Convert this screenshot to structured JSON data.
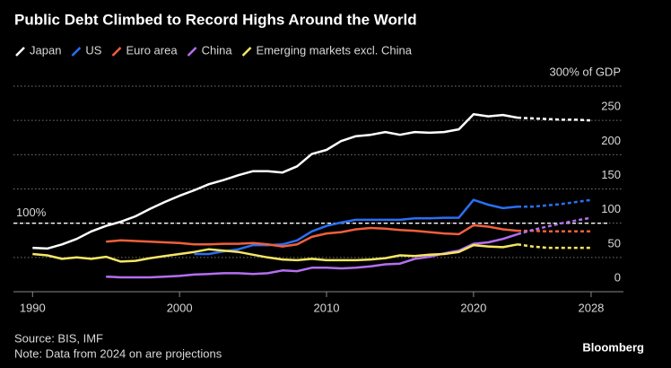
{
  "chart_data": {
    "type": "line",
    "title": "Public Debt Climbed to Record Highs Around the World",
    "x": [
      1990,
      1991,
      1992,
      1993,
      1994,
      1995,
      1996,
      1997,
      1998,
      1999,
      2000,
      2001,
      2002,
      2003,
      2004,
      2005,
      2006,
      2007,
      2008,
      2009,
      2010,
      2011,
      2012,
      2013,
      2014,
      2015,
      2016,
      2017,
      2018,
      2019,
      2020,
      2021,
      2022,
      2023,
      2024,
      2025,
      2026,
      2027,
      2028
    ],
    "series": [
      {
        "name": "Japan",
        "color": "#ffffff",
        "values": [
          64,
          63,
          69,
          77,
          88,
          96,
          102,
          110,
          121,
          131,
          140,
          148,
          157,
          163,
          170,
          176,
          176,
          174,
          183,
          201,
          207,
          220,
          227,
          229,
          233,
          229,
          233,
          232,
          233,
          237,
          259,
          256,
          258,
          254,
          253,
          252,
          251,
          251,
          250
        ]
      },
      {
        "name": "US",
        "color": "#2a6ff3",
        "values": [
          null,
          null,
          null,
          null,
          null,
          null,
          null,
          null,
          null,
          null,
          null,
          55,
          55,
          59,
          62,
          68,
          68,
          69,
          75,
          88,
          96,
          101,
          105,
          105,
          105,
          105,
          107,
          107,
          108,
          108,
          134,
          127,
          122,
          124,
          124,
          126,
          128,
          131,
          134
        ]
      },
      {
        "name": "Euro area",
        "color": "#f0603c",
        "values": [
          null,
          null,
          null,
          null,
          null,
          73,
          75,
          74,
          73,
          72,
          71,
          69,
          69,
          70,
          70,
          71,
          69,
          66,
          69,
          80,
          85,
          87,
          91,
          93,
          92,
          90,
          89,
          87,
          85,
          84,
          97,
          95,
          91,
          89,
          89,
          88,
          88,
          88,
          88
        ]
      },
      {
        "name": "China",
        "color": "#b46ff0",
        "values": [
          null,
          null,
          null,
          null,
          null,
          22,
          21,
          21,
          21,
          22,
          23,
          25,
          26,
          27,
          27,
          26,
          27,
          31,
          30,
          35,
          35,
          34,
          35,
          37,
          40,
          41,
          48,
          51,
          56,
          60,
          70,
          72,
          77,
          84,
          90,
          95,
          100,
          104,
          108
        ]
      },
      {
        "name": "Emerging markets excl. China",
        "color": "#f5e663",
        "values": [
          55,
          53,
          48,
          50,
          48,
          51,
          44,
          45,
          49,
          52,
          55,
          58,
          62,
          60,
          58,
          54,
          50,
          47,
          46,
          48,
          46,
          46,
          46,
          47,
          49,
          53,
          52,
          54,
          55,
          58,
          68,
          66,
          65,
          69,
          66,
          64,
          64,
          64,
          64
        ]
      }
    ],
    "projection_from": 2024,
    "xlim": [
      1988.7,
      2030.2
    ],
    "xticks": [
      1990,
      2000,
      2010,
      2020,
      2028
    ],
    "ylim": [
      0,
      300
    ],
    "yticks": [
      0,
      50,
      100,
      150,
      200,
      250,
      {
        "value": 300,
        "label": "300% of GDP"
      }
    ],
    "reference_line": {
      "value": 100,
      "label": "100%"
    },
    "grid": true,
    "source": "Source: BIS, IMF",
    "note": "Note: Data from 2024 on are projections",
    "brand": "Bloomberg"
  }
}
